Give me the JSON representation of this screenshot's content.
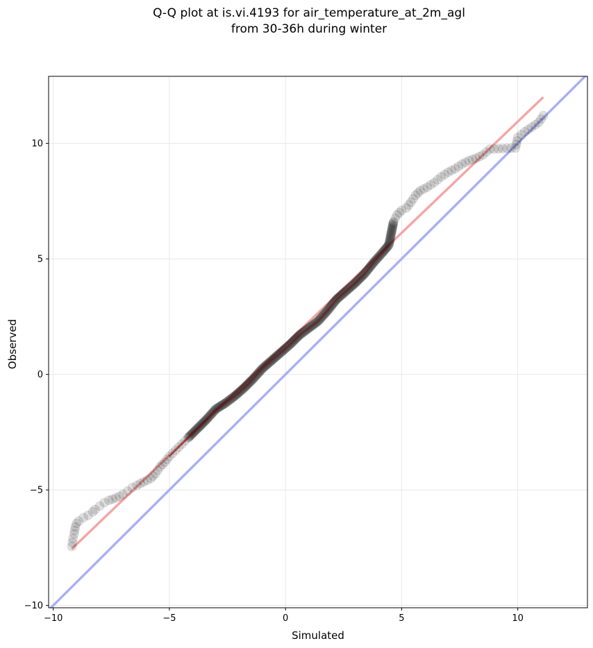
{
  "chart_data": {
    "type": "scatter",
    "title": "Q-Q plot at is.vi.4193 for air_temperature_at_2m_agl",
    "subtitle": "from 30-36h during winter",
    "xlabel": "Simulated",
    "ylabel": "Observed",
    "xlim": [
      -10.2,
      13.0
    ],
    "ylim": [
      -10.1,
      12.9
    ],
    "x_ticks": [
      -10,
      -5,
      0,
      5,
      10
    ],
    "y_ticks": [
      -10,
      -5,
      0,
      5,
      10
    ],
    "x_tick_labels": [
      "−10",
      "−5",
      "0",
      "5",
      "10"
    ],
    "y_tick_labels": [
      "−10",
      "−5",
      "0",
      "5",
      "10"
    ],
    "grid": true,
    "legend": "none",
    "quantile_curve": [
      [
        -9.2,
        -7.45
      ],
      [
        -9.15,
        -7.1
      ],
      [
        -9.1,
        -6.9
      ],
      [
        -9.05,
        -6.6
      ],
      [
        -9.0,
        -6.45
      ],
      [
        -8.9,
        -6.35
      ],
      [
        -8.7,
        -6.2
      ],
      [
        -8.5,
        -6.1
      ],
      [
        -8.3,
        -5.95
      ],
      [
        -8.2,
        -5.85
      ],
      [
        -8.0,
        -5.7
      ],
      [
        -7.8,
        -5.55
      ],
      [
        -7.6,
        -5.45
      ],
      [
        -7.3,
        -5.35
      ],
      [
        -7.0,
        -5.2
      ],
      [
        -6.8,
        -5.05
      ],
      [
        -6.6,
        -4.9
      ],
      [
        -6.4,
        -4.8
      ],
      [
        -6.1,
        -4.65
      ],
      [
        -5.8,
        -4.5
      ],
      [
        -5.6,
        -4.3
      ],
      [
        -5.4,
        -4.0
      ],
      [
        -5.2,
        -3.8
      ],
      [
        -5.0,
        -3.55
      ],
      [
        -4.6,
        -3.15
      ],
      [
        -4.2,
        -2.75
      ],
      [
        -3.8,
        -2.35
      ],
      [
        -3.4,
        -1.95
      ],
      [
        -3.0,
        -1.5
      ],
      [
        -2.6,
        -1.25
      ],
      [
        -2.2,
        -0.95
      ],
      [
        -1.8,
        -0.6
      ],
      [
        -1.4,
        -0.2
      ],
      [
        -1.0,
        0.25
      ],
      [
        -0.6,
        0.6
      ],
      [
        -0.2,
        0.95
      ],
      [
        0.2,
        1.3
      ],
      [
        0.6,
        1.7
      ],
      [
        1.0,
        2.0
      ],
      [
        1.4,
        2.3
      ],
      [
        1.8,
        2.75
      ],
      [
        2.2,
        3.25
      ],
      [
        2.6,
        3.6
      ],
      [
        3.0,
        3.95
      ],
      [
        3.4,
        4.35
      ],
      [
        3.8,
        4.85
      ],
      [
        4.2,
        5.3
      ],
      [
        4.45,
        5.6
      ],
      [
        4.55,
        6.1
      ],
      [
        4.65,
        6.6
      ],
      [
        4.8,
        6.9
      ],
      [
        5.0,
        7.1
      ],
      [
        5.2,
        7.2
      ],
      [
        5.4,
        7.45
      ],
      [
        5.6,
        7.75
      ],
      [
        5.8,
        7.95
      ],
      [
        6.1,
        8.1
      ],
      [
        6.4,
        8.3
      ],
      [
        6.7,
        8.55
      ],
      [
        7.0,
        8.75
      ],
      [
        7.3,
        8.9
      ],
      [
        7.6,
        9.1
      ],
      [
        7.9,
        9.25
      ],
      [
        8.2,
        9.35
      ],
      [
        8.5,
        9.5
      ],
      [
        8.8,
        9.75
      ],
      [
        9.9,
        9.8
      ],
      [
        10.0,
        10.25
      ],
      [
        10.3,
        10.5
      ],
      [
        10.6,
        10.7
      ],
      [
        10.9,
        10.9
      ],
      [
        11.1,
        11.2
      ]
    ],
    "fit_line": {
      "x": [
        -9.2,
        11.1
      ],
      "y": [
        -7.55,
        12.0
      ],
      "color": "#f4a6a6"
    },
    "identity_line": {
      "x": [
        -10.2,
        13.0
      ],
      "y": [
        -10.2,
        13.0
      ],
      "color": "#aab0f3"
    },
    "point_color": "#000000",
    "overlay_color": "#8b0000"
  }
}
